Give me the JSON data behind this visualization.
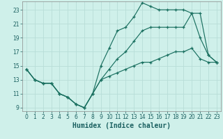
{
  "title": "",
  "xlabel": "Humidex (Indice chaleur)",
  "bg_color": "#cff0ea",
  "grid_color": "#b8ddd8",
  "line_color": "#1a7060",
  "x_ticks": [
    0,
    1,
    2,
    3,
    4,
    5,
    6,
    7,
    8,
    9,
    10,
    11,
    12,
    13,
    14,
    15,
    16,
    17,
    18,
    19,
    20,
    21,
    22,
    23
  ],
  "y_ticks": [
    9,
    11,
    13,
    15,
    17,
    19,
    21,
    23
  ],
  "xlim": [
    -0.5,
    23.5
  ],
  "ylim": [
    8.5,
    24.2
  ],
  "line1_y": [
    14.5,
    13.0,
    12.5,
    12.5,
    11.0,
    10.5,
    9.5,
    9.0,
    11.0,
    15.0,
    17.5,
    20.0,
    20.5,
    22.0,
    24.0,
    23.5,
    23.0,
    23.0,
    23.0,
    23.0,
    22.5,
    19.0,
    16.5,
    15.5
  ],
  "line2_y": [
    14.5,
    13.0,
    12.5,
    12.5,
    11.0,
    10.5,
    9.5,
    9.0,
    11.0,
    13.0,
    13.5,
    14.0,
    14.5,
    15.0,
    15.5,
    15.5,
    16.0,
    16.5,
    17.0,
    17.0,
    17.5,
    16.0,
    15.5,
    15.5
  ],
  "line3_y": [
    14.5,
    13.0,
    12.5,
    12.5,
    11.0,
    10.5,
    9.5,
    9.0,
    11.0,
    13.0,
    14.5,
    16.0,
    17.0,
    18.5,
    20.0,
    20.5,
    20.5,
    20.5,
    20.5,
    20.5,
    22.5,
    22.5,
    16.5,
    15.5
  ],
  "tick_fontsize": 5.5,
  "xlabel_fontsize": 7.0
}
